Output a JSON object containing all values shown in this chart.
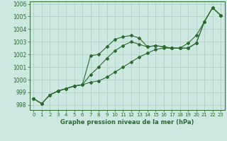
{
  "x": [
    0,
    1,
    2,
    3,
    4,
    5,
    6,
    7,
    8,
    9,
    10,
    11,
    12,
    13,
    14,
    15,
    16,
    17,
    18,
    19,
    20,
    21,
    22,
    23
  ],
  "line1": [
    998.5,
    998.1,
    998.8,
    999.1,
    999.3,
    999.5,
    999.6,
    1001.9,
    1002.0,
    1002.6,
    1003.2,
    1003.4,
    1003.5,
    1003.3,
    1002.6,
    1002.7,
    1002.6,
    1002.5,
    1002.5,
    1002.9,
    1003.5,
    1004.6,
    1005.7,
    1005.1
  ],
  "line2": [
    998.5,
    998.1,
    998.8,
    999.1,
    999.3,
    999.5,
    999.6,
    1000.4,
    1001.0,
    1001.7,
    1002.3,
    1002.7,
    1003.0,
    1002.8,
    1002.6,
    1002.7,
    1002.6,
    1002.5,
    1002.5,
    1002.5,
    1002.9,
    1004.6,
    1005.7,
    1005.1
  ],
  "line3": [
    998.5,
    998.1,
    998.8,
    999.1,
    999.3,
    999.5,
    999.6,
    999.8,
    999.9,
    1000.2,
    1000.6,
    1001.0,
    1001.4,
    1001.8,
    1002.1,
    1002.4,
    1002.5,
    1002.5,
    1002.5,
    1002.5,
    1002.9,
    1004.6,
    1005.7,
    1005.1
  ],
  "line_color": "#2d6a2d",
  "bg_color": "#cce8e0",
  "grid_color": "#aaccC4",
  "xlabel": "Graphe pression niveau de la mer (hPa)",
  "ylim": [
    997.6,
    1006.2
  ],
  "yticks": [
    998,
    999,
    1000,
    1001,
    1002,
    1003,
    1004,
    1005,
    1006
  ],
  "xticks": [
    0,
    1,
    2,
    3,
    4,
    5,
    6,
    7,
    8,
    9,
    10,
    11,
    12,
    13,
    14,
    15,
    16,
    17,
    18,
    19,
    20,
    21,
    22,
    23
  ]
}
